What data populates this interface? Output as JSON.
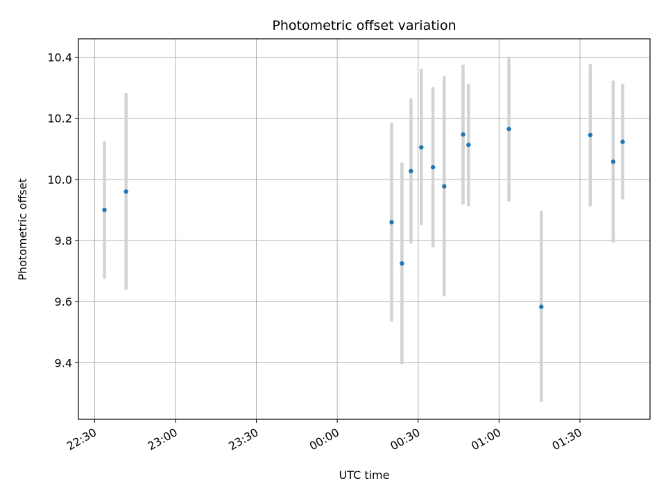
{
  "chart_data": {
    "type": "scatter",
    "title": "Photometric offset variation",
    "xlabel": "UTC time",
    "ylabel": "Photometric offset",
    "x_unit": "UTC clock time (HH:MM), axis spans 22:24 to 01:56",
    "xlim": [
      "22:24",
      "01:56"
    ],
    "ylim": [
      9.215,
      10.46
    ],
    "x_ticks": [
      "22:30",
      "23:00",
      "23:30",
      "00:00",
      "00:30",
      "01:00",
      "01:30"
    ],
    "y_ticks": [
      9.4,
      9.6,
      9.8,
      10.0,
      10.2,
      10.4
    ],
    "y_tick_labels": [
      "9.4",
      "9.6",
      "9.8",
      "10.0",
      "10.2",
      "10.4"
    ],
    "grid": true,
    "marker_color": "#1f77b4",
    "errorbar_color": "#d3d3d3",
    "points": [
      {
        "time": "22:33:40",
        "y": 9.9,
        "ylow": 9.675,
        "yhigh": 10.125
      },
      {
        "time": "22:41:40",
        "y": 9.96,
        "ylow": 9.64,
        "yhigh": 10.283
      },
      {
        "time": "00:20:10",
        "y": 9.86,
        "ylow": 9.535,
        "yhigh": 10.185
      },
      {
        "time": "00:24:00",
        "y": 9.725,
        "ylow": 9.395,
        "yhigh": 10.055
      },
      {
        "time": "00:27:20",
        "y": 10.027,
        "ylow": 9.79,
        "yhigh": 10.265
      },
      {
        "time": "00:31:10",
        "y": 10.105,
        "ylow": 9.85,
        "yhigh": 10.362
      },
      {
        "time": "00:35:30",
        "y": 10.04,
        "ylow": 9.778,
        "yhigh": 10.302
      },
      {
        "time": "00:39:40",
        "y": 9.977,
        "ylow": 9.618,
        "yhigh": 10.337
      },
      {
        "time": "00:46:40",
        "y": 10.147,
        "ylow": 9.918,
        "yhigh": 10.375
      },
      {
        "time": "00:48:40",
        "y": 10.113,
        "ylow": 9.913,
        "yhigh": 10.312
      },
      {
        "time": "01:03:40",
        "y": 10.165,
        "ylow": 9.928,
        "yhigh": 10.402
      },
      {
        "time": "01:15:40",
        "y": 9.583,
        "ylow": 9.272,
        "yhigh": 9.897
      },
      {
        "time": "01:33:50",
        "y": 10.145,
        "ylow": 9.912,
        "yhigh": 10.378
      },
      {
        "time": "01:42:20",
        "y": 10.058,
        "ylow": 9.793,
        "yhigh": 10.323
      },
      {
        "time": "01:45:50",
        "y": 10.123,
        "ylow": 9.935,
        "yhigh": 10.313
      }
    ]
  }
}
